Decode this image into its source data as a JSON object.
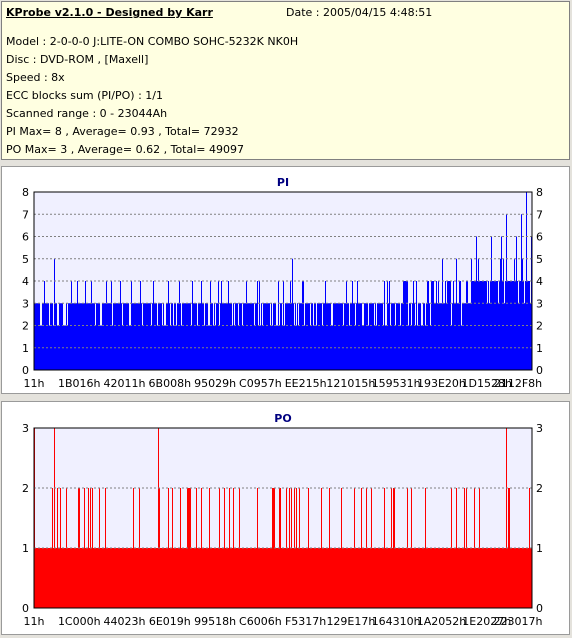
{
  "header": {
    "title": "KProbe v2.1.0 - Designed by Karr",
    "date": "Date : 2005/04/15 4:48:51",
    "lines": [
      "Model : 2-0-0-0 J:LITE-ON COMBO SOHC-5232K NK0H",
      "Disc : DVD-ROM ,  [Maxell]",
      "Speed : 8x",
      "ECC blocks sum (PI/PO) : 1/1",
      "Scanned range : 0 - 23044Ah",
      "PI Max= 8 , Average= 0.93 , Total= 72932",
      "PO Max= 3 , Average= 0.62 , Total= 49097"
    ]
  },
  "colors": {
    "pi": "#0000ff",
    "po": "#ff0000",
    "plot_bg": "#f0f0ff",
    "title": "#000080"
  },
  "chart_data": [
    {
      "type": "bar",
      "title": "PI",
      "ylim": [
        0,
        8
      ],
      "yticks": [
        0,
        1,
        2,
        3,
        4,
        5,
        6,
        7,
        8
      ],
      "xticks": [
        "11h",
        "1B016h",
        "42011h",
        "6B008h",
        "95029h",
        "C0957h",
        "EE215h",
        "121015h",
        "159531h",
        "193E20h",
        "1D1528h",
        "2112F8h"
      ],
      "xrange": [
        0,
        143434
      ],
      "average": 0.93,
      "max": 8,
      "total": 72932,
      "baseline_profile": [
        {
          "until_fraction": 0.76,
          "typical": 3
        },
        {
          "until_fraction": 0.88,
          "typical": 3.5
        },
        {
          "until_fraction": 1.0,
          "typical": 4
        }
      ],
      "spikes": [
        [
          0.04,
          5
        ],
        [
          0.52,
          5
        ],
        [
          0.5,
          4
        ],
        [
          0.82,
          5
        ],
        [
          0.85,
          5
        ],
        [
          0.88,
          5
        ],
        [
          0.89,
          6
        ],
        [
          0.92,
          6
        ],
        [
          0.94,
          6
        ],
        [
          0.95,
          7
        ],
        [
          0.97,
          6
        ],
        [
          0.98,
          7
        ],
        [
          0.99,
          8
        ],
        [
          1.0,
          6
        ]
      ]
    },
    {
      "type": "bar",
      "title": "PO",
      "ylim": [
        0,
        3
      ],
      "yticks": [
        0,
        1,
        2,
        3
      ],
      "xticks": [
        "11h",
        "1C000h",
        "44023h",
        "6E019h",
        "99518h",
        "C6006h",
        "F5317h",
        "129E17h",
        "164310h",
        "1A2052h",
        "1E2027h",
        "223017h"
      ],
      "xrange": [
        0,
        143434
      ],
      "average": 0.62,
      "max": 3,
      "total": 49097,
      "baseline": 1,
      "spikes": [
        [
          0.0,
          3
        ],
        [
          0.04,
          3
        ],
        [
          0.25,
          3
        ],
        [
          0.95,
          3
        ]
      ]
    }
  ]
}
